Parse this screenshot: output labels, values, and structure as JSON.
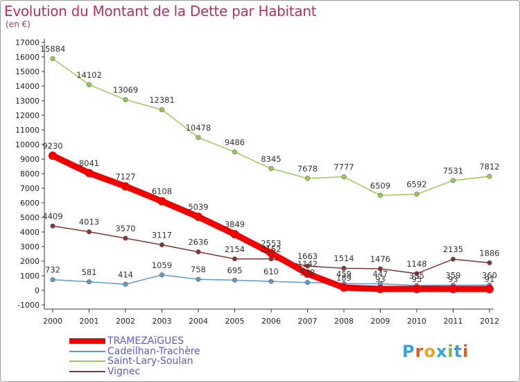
{
  "title": "Evolution du Montant de la Dette par Habitant",
  "subtitle": "(en €)",
  "logo": {
    "text": "Proxiti"
  },
  "chart_data": {
    "type": "line",
    "x": [
      "2000",
      "2001",
      "2002",
      "2003",
      "2004",
      "2005",
      "2006",
      "2007",
      "2008",
      "2009",
      "2010",
      "2011",
      "2012"
    ],
    "ylim": [
      -1000,
      17000
    ],
    "yticks": [
      -1000,
      0,
      1000,
      2000,
      3000,
      4000,
      5000,
      6000,
      7000,
      8000,
      9000,
      10000,
      11000,
      12000,
      13000,
      14000,
      15000,
      16000,
      17000
    ],
    "grid": false,
    "legend_position": "bottom-left",
    "series": [
      {
        "name": "TRAMEZAïGUES",
        "color": "#ee0000",
        "values": [
          9230,
          8041,
          7127,
          6108,
          5039,
          3849,
          2553,
          1142,
          189,
          93,
          95,
          93,
          91
        ],
        "labels": [
          "9230",
          "8041",
          "7127",
          "6108",
          "5039",
          "3849",
          "2553",
          "1142",
          "189",
          "93",
          "95",
          "93",
          "91"
        ]
      },
      {
        "name": "Cadeilhan-Trachère",
        "color": "#5b9bd0",
        "values": [
          732,
          581,
          414,
          1059,
          758,
          695,
          610,
          538,
          459,
          447,
          335,
          359,
          360
        ],
        "labels": [
          "732",
          "581",
          "414",
          "1059",
          "758",
          "695",
          "610",
          "538",
          "459",
          "447",
          "335",
          "359",
          "360"
        ]
      },
      {
        "name": "Saint-Lary-Soulan",
        "color": "#99cc55",
        "values": [
          15884,
          14102,
          13069,
          12381,
          10478,
          9486,
          8345,
          7678,
          7777,
          6509,
          6592,
          7531,
          7812
        ],
        "labels": [
          "15884",
          "14102",
          "13069",
          "12381",
          "10478",
          "9486",
          "8345",
          "7678",
          "7777",
          "6509",
          "6592",
          "7531",
          "7812"
        ]
      },
      {
        "name": "Vignec",
        "color": "#883333",
        "values": [
          4409,
          4013,
          3570,
          3117,
          2636,
          2154,
          2152,
          1663,
          1514,
          1476,
          1148,
          2135,
          1886
        ],
        "labels": [
          "4409",
          "4013",
          "3570",
          "3117",
          "2636",
          "2154",
          "2152",
          "1663",
          "1514",
          "1476",
          "1148",
          "2135",
          "1886"
        ]
      }
    ]
  }
}
